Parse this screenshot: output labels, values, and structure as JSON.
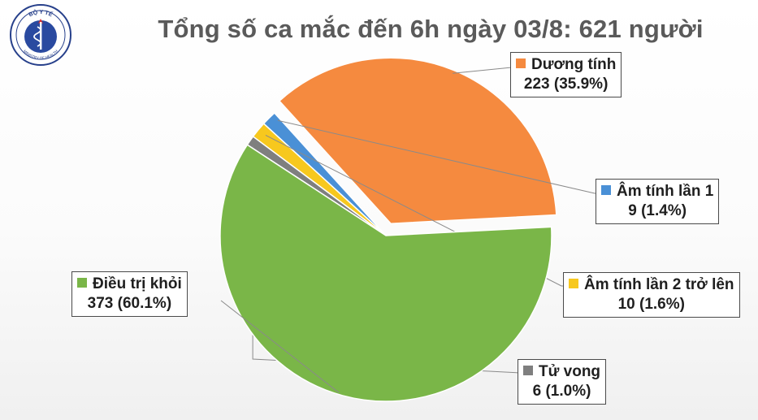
{
  "logo": {
    "top_text": "BỘ Y TẾ",
    "bottom_text": "MINISTRY OF HEALTH"
  },
  "chart_data": {
    "type": "pie",
    "title": "Tổng số ca mắc đến 6h ngày 03/8: 621 người",
    "total": 621,
    "slices": [
      {
        "name": "Dương tính",
        "value": 223,
        "percent": "35.9%",
        "value_label": "223 (35.9%)",
        "color": "#f58a3f",
        "exploded": true
      },
      {
        "name": "Âm tính lần 1",
        "value": 9,
        "percent": "1.4%",
        "value_label": "9 (1.4%)",
        "color": "#4a90d6",
        "exploded": false
      },
      {
        "name": "Âm tính lần 2 trở lên",
        "value": 10,
        "percent": "1.6%",
        "value_label": "10 (1.6%)",
        "color": "#f7c81e",
        "exploded": false
      },
      {
        "name": "Tử vong",
        "value": 6,
        "percent": "1.0%",
        "value_label": "6 (1.0%)",
        "color": "#7f7f7f",
        "exploded": false
      },
      {
        "name": "Điều trị khỏi",
        "value": 373,
        "percent": "60.1%",
        "value_label": "373 (60.1%)",
        "color": "#7ab648",
        "exploded": false
      }
    ],
    "start_angle_deg": 3,
    "direction": "counterclockwise"
  }
}
